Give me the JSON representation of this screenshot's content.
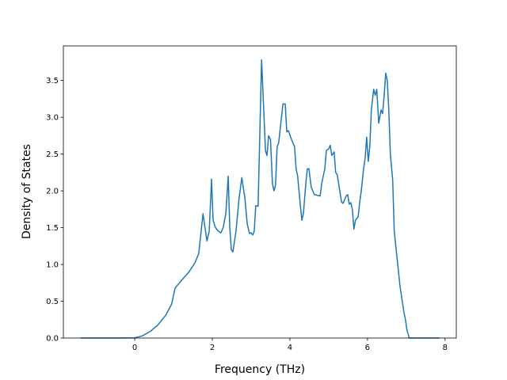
{
  "chart_data": {
    "type": "line",
    "xlabel": "Frequency (THz)",
    "ylabel": "Density of States",
    "x": [
      -1.39,
      -0.5,
      0,
      0.2,
      0.4,
      0.6,
      0.8,
      0.95,
      1.04,
      1.2,
      1.4,
      1.55,
      1.65,
      1.76,
      1.86,
      1.92,
      1.98,
      2.02,
      2.08,
      2.16,
      2.22,
      2.28,
      2.35,
      2.41,
      2.45,
      2.49,
      2.53,
      2.61,
      2.69,
      2.76,
      2.84,
      2.9,
      2.96,
      3.0,
      3.04,
      3.08,
      3.12,
      3.18,
      3.27,
      3.37,
      3.41,
      3.45,
      3.5,
      3.55,
      3.59,
      3.63,
      3.67,
      3.71,
      3.82,
      3.88,
      3.92,
      3.96,
      4.04,
      4.12,
      4.16,
      4.2,
      4.27,
      4.31,
      4.35,
      4.41,
      4.45,
      4.49,
      4.55,
      4.63,
      4.78,
      4.82,
      4.9,
      4.94,
      5.0,
      5.04,
      5.08,
      5.14,
      5.18,
      5.22,
      5.33,
      5.37,
      5.45,
      5.49,
      5.53,
      5.57,
      5.61,
      5.65,
      5.69,
      5.76,
      5.8,
      5.84,
      5.9,
      5.94,
      5.98,
      6.02,
      6.06,
      6.1,
      6.16,
      6.2,
      6.24,
      6.29,
      6.35,
      6.39,
      6.43,
      6.47,
      6.51,
      6.55,
      6.59,
      6.65,
      6.69,
      6.76,
      6.84,
      6.94,
      6.98,
      7.02,
      7.08,
      7.86
    ],
    "series": [
      {
        "name": "DOS",
        "color": "#1f77b4",
        "values": [
          0,
          0,
          0.003,
          0.03,
          0.09,
          0.18,
          0.31,
          0.46,
          0.68,
          0.78,
          0.9,
          1.02,
          1.15,
          1.69,
          1.32,
          1.45,
          2.16,
          1.6,
          1.5,
          1.45,
          1.43,
          1.5,
          1.7,
          2.2,
          1.5,
          1.2,
          1.17,
          1.45,
          1.9,
          2.18,
          1.9,
          1.55,
          1.42,
          1.43,
          1.4,
          1.45,
          1.8,
          1.79,
          3.78,
          2.55,
          2.48,
          2.75,
          2.7,
          2.1,
          2.0,
          2.08,
          2.6,
          2.65,
          3.18,
          3.18,
          2.8,
          2.82,
          2.7,
          2.6,
          2.3,
          2.2,
          1.8,
          1.6,
          1.7,
          2.1,
          2.3,
          2.3,
          2.05,
          1.95,
          1.93,
          2.1,
          2.3,
          2.55,
          2.57,
          2.62,
          2.48,
          2.53,
          2.25,
          2.22,
          1.85,
          1.83,
          1.93,
          1.95,
          1.82,
          1.84,
          1.75,
          1.48,
          1.6,
          1.65,
          1.85,
          2.0,
          2.3,
          2.45,
          2.73,
          2.4,
          2.6,
          3.1,
          3.38,
          3.3,
          3.38,
          2.92,
          3.1,
          3.05,
          3.3,
          3.6,
          3.5,
          3.1,
          2.5,
          2.15,
          1.45,
          1.1,
          0.7,
          0.35,
          0.25,
          0.1,
          0,
          0
        ]
      }
    ],
    "xlim": [
      -1.84,
      8.29
    ],
    "xticks": [
      0,
      2,
      4,
      6,
      8
    ],
    "ylim": [
      0,
      3.97
    ],
    "yticks": [
      {
        "value": 0,
        "label": "0.0"
      },
      {
        "value": 0.5,
        "label": "0.5"
      },
      {
        "value": 1,
        "label": "1.0"
      },
      {
        "value": 1.5,
        "label": "1.5"
      },
      {
        "value": 2,
        "label": "2.0"
      },
      {
        "value": 2.5,
        "label": "2.5"
      },
      {
        "value": 3,
        "label": "3.0"
      },
      {
        "value": 3.5,
        "label": "3.5"
      }
    ],
    "grid": false
  }
}
